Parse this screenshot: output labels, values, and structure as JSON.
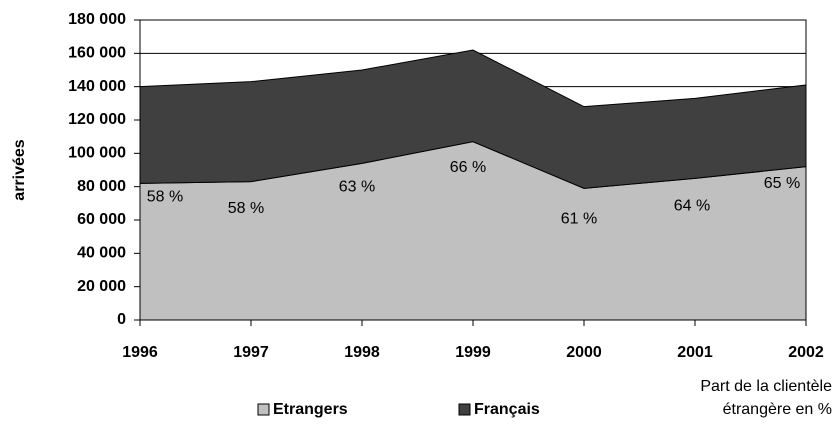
{
  "chart_data": {
    "type": "stacked_area",
    "y_label": "arrivées",
    "categories": [
      "1996",
      "1997",
      "1998",
      "1999",
      "2000",
      "2001",
      "2002"
    ],
    "series": [
      {
        "name": "Etrangers",
        "color": "#c0c0c0",
        "values": [
          82000,
          83000,
          94000,
          107000,
          79000,
          85000,
          92000
        ]
      },
      {
        "name": "Français",
        "color": "#404040",
        "values": [
          58000,
          60000,
          56000,
          55000,
          49000,
          48000,
          49000
        ]
      }
    ],
    "annotations": [
      "58 %",
      "58 %",
      "63 %",
      "66 %",
      "61 %",
      "64 %",
      "65 %"
    ],
    "annotation_title": [
      "Part de la clientèle",
      "étrangère en %"
    ],
    "ylim": [
      0,
      180000
    ],
    "yticks": [
      {
        "value": 0,
        "label": "0"
      },
      {
        "value": 20000,
        "label": "20 000"
      },
      {
        "value": 40000,
        "label": "40 000"
      },
      {
        "value": 60000,
        "label": "60 000"
      },
      {
        "value": 80000,
        "label": "80 000"
      },
      {
        "value": 100000,
        "label": "100 000"
      },
      {
        "value": 120000,
        "label": "120 000"
      },
      {
        "value": 140000,
        "label": "140 000"
      },
      {
        "value": 160000,
        "label": "160 000"
      },
      {
        "value": 180000,
        "label": "180 000"
      }
    ],
    "grid": true,
    "legend": "bottom"
  }
}
